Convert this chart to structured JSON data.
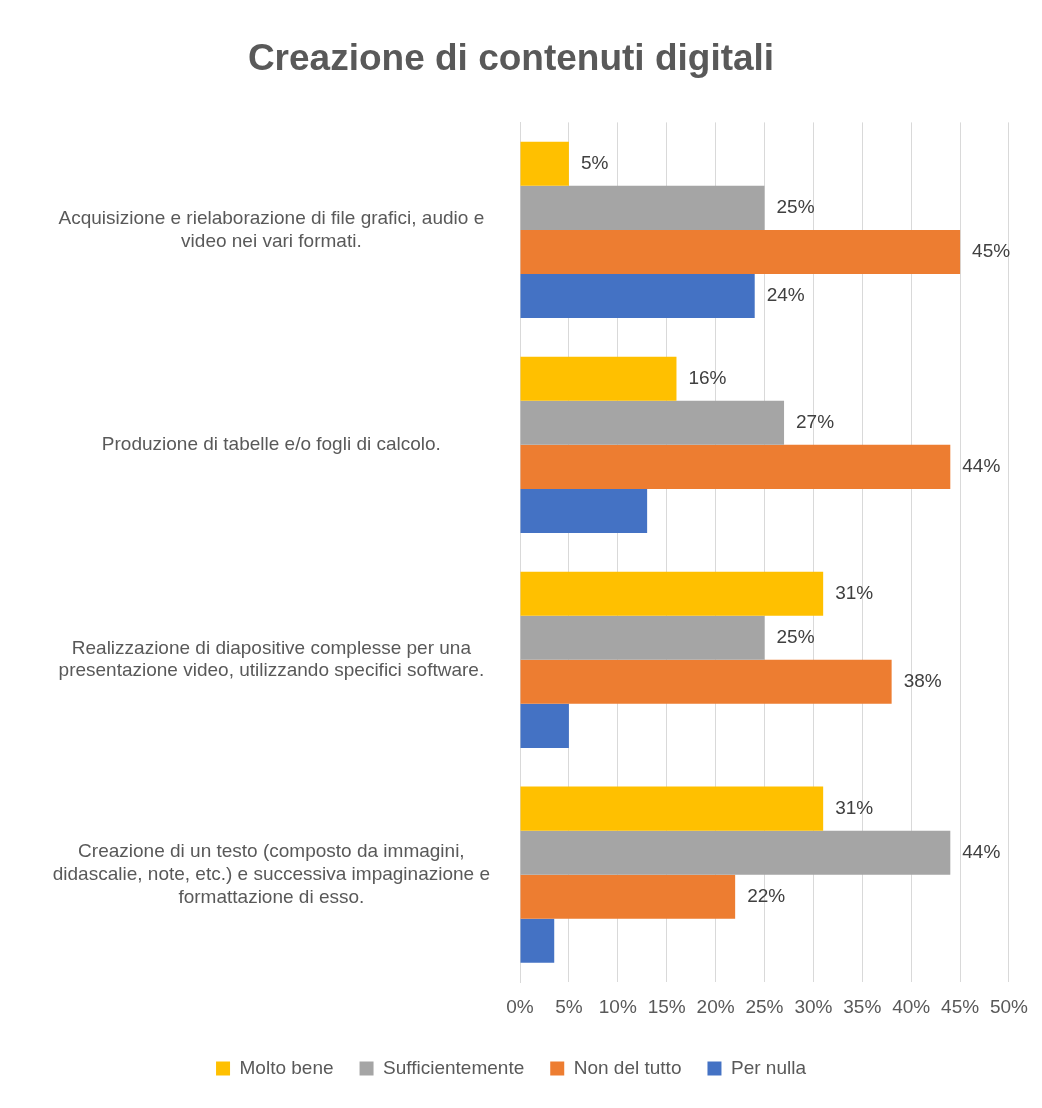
{
  "chart_data": {
    "type": "bar",
    "orientation": "horizontal",
    "title": "Creazione di contenuti digitali",
    "categories": [
      "Acquisizione e rielaborazione di file grafici, audio e video nei vari formati.",
      "Produzione di tabelle e/o fogli di calcolo.",
      "Realizzazione di diapositive complesse per una presentazione video, utilizzando specifici software.",
      "Creazione di un testo (composto da immagini, didascalie, note, etc.) e successiva impaginazione e formattazione di esso."
    ],
    "series": [
      {
        "name": "Molto bene",
        "color": "#ffc000",
        "values": [
          5,
          16,
          31,
          31
        ],
        "value_labels": [
          "5%",
          "16%",
          "31%",
          "31%"
        ]
      },
      {
        "name": "Sufficientemente",
        "color": "#a5a5a5",
        "values": [
          25,
          27,
          25,
          44
        ],
        "value_labels": [
          "25%",
          "27%",
          "25%",
          "44%"
        ]
      },
      {
        "name": "Non del tutto",
        "color": "#ed7d31",
        "values": [
          45,
          44,
          38,
          22
        ],
        "value_labels": [
          "45%",
          "44%",
          "38%",
          "22%"
        ]
      },
      {
        "name": "Per nulla",
        "color": "#4472c4",
        "values": [
          24,
          13,
          5,
          3.5
        ],
        "value_labels": [
          "24%",
          null,
          null,
          null
        ]
      }
    ],
    "xlim": [
      0,
      50
    ],
    "xticks": [
      {
        "value": 0,
        "label": "0%"
      },
      {
        "value": 5,
        "label": "5%"
      },
      {
        "value": 10,
        "label": "10%"
      },
      {
        "value": 15,
        "label": "15%"
      },
      {
        "value": 20,
        "label": "20%"
      },
      {
        "value": 25,
        "label": "25%"
      },
      {
        "value": 30,
        "label": "30%"
      },
      {
        "value": 35,
        "label": "35%"
      },
      {
        "value": 40,
        "label": "40%"
      },
      {
        "value": 45,
        "label": "45%"
      },
      {
        "value": 50,
        "label": "50%"
      }
    ],
    "grid": "x",
    "legend": "bottom"
  }
}
